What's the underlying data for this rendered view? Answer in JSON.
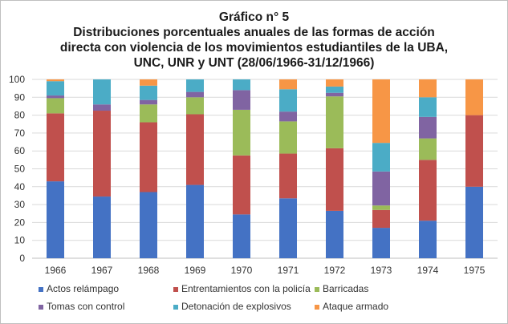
{
  "chart_data": {
    "type": "bar",
    "stacked": true,
    "title": [
      "Gráfico n° 5",
      "Distribuciones porcentuales anuales de las formas de acción",
      "directa con violencia de los movimientos estudiantiles de la UBA,",
      "UNC, UNR y  UNT (28/06/1966-31/12/1966)"
    ],
    "categories": [
      "1966",
      "1967",
      "1968",
      "1969",
      "1970",
      "1971",
      "1972",
      "1973",
      "1974",
      "1975"
    ],
    "ylim": [
      0,
      100
    ],
    "yticks": [
      "0",
      "10",
      "20",
      "30",
      "40",
      "50",
      "60",
      "70",
      "80",
      "90",
      "100"
    ],
    "grid": true,
    "legend_position": "bottom",
    "series": [
      {
        "name": "Actos relámpago",
        "color": "#4472c4",
        "values": [
          43,
          34.5,
          37,
          41,
          24.5,
          33.5,
          26.5,
          17,
          21,
          40
        ]
      },
      {
        "name": "Entrentamientos con la policía",
        "color": "#c0504d",
        "values": [
          38,
          48,
          39,
          39.5,
          33,
          25,
          35,
          10,
          34,
          40
        ]
      },
      {
        "name": "Barricadas",
        "color": "#9bbb59",
        "values": [
          8.5,
          0,
          10,
          9.5,
          25.5,
          18,
          29,
          2.5,
          12,
          0
        ]
      },
      {
        "name": "Tomas con control",
        "color": "#8064a2",
        "values": [
          1.5,
          3.5,
          2.5,
          3,
          11,
          5.5,
          2,
          19,
          12,
          0
        ]
      },
      {
        "name": "Detonación de explosivos",
        "color": "#4bacc6",
        "values": [
          8,
          14,
          8,
          7,
          6,
          12.5,
          3.5,
          16,
          11,
          0
        ]
      },
      {
        "name": "Ataque armado",
        "color": "#f79646",
        "values": [
          1,
          0,
          3.5,
          0,
          0,
          5.5,
          4,
          35.5,
          10,
          20
        ]
      }
    ]
  }
}
